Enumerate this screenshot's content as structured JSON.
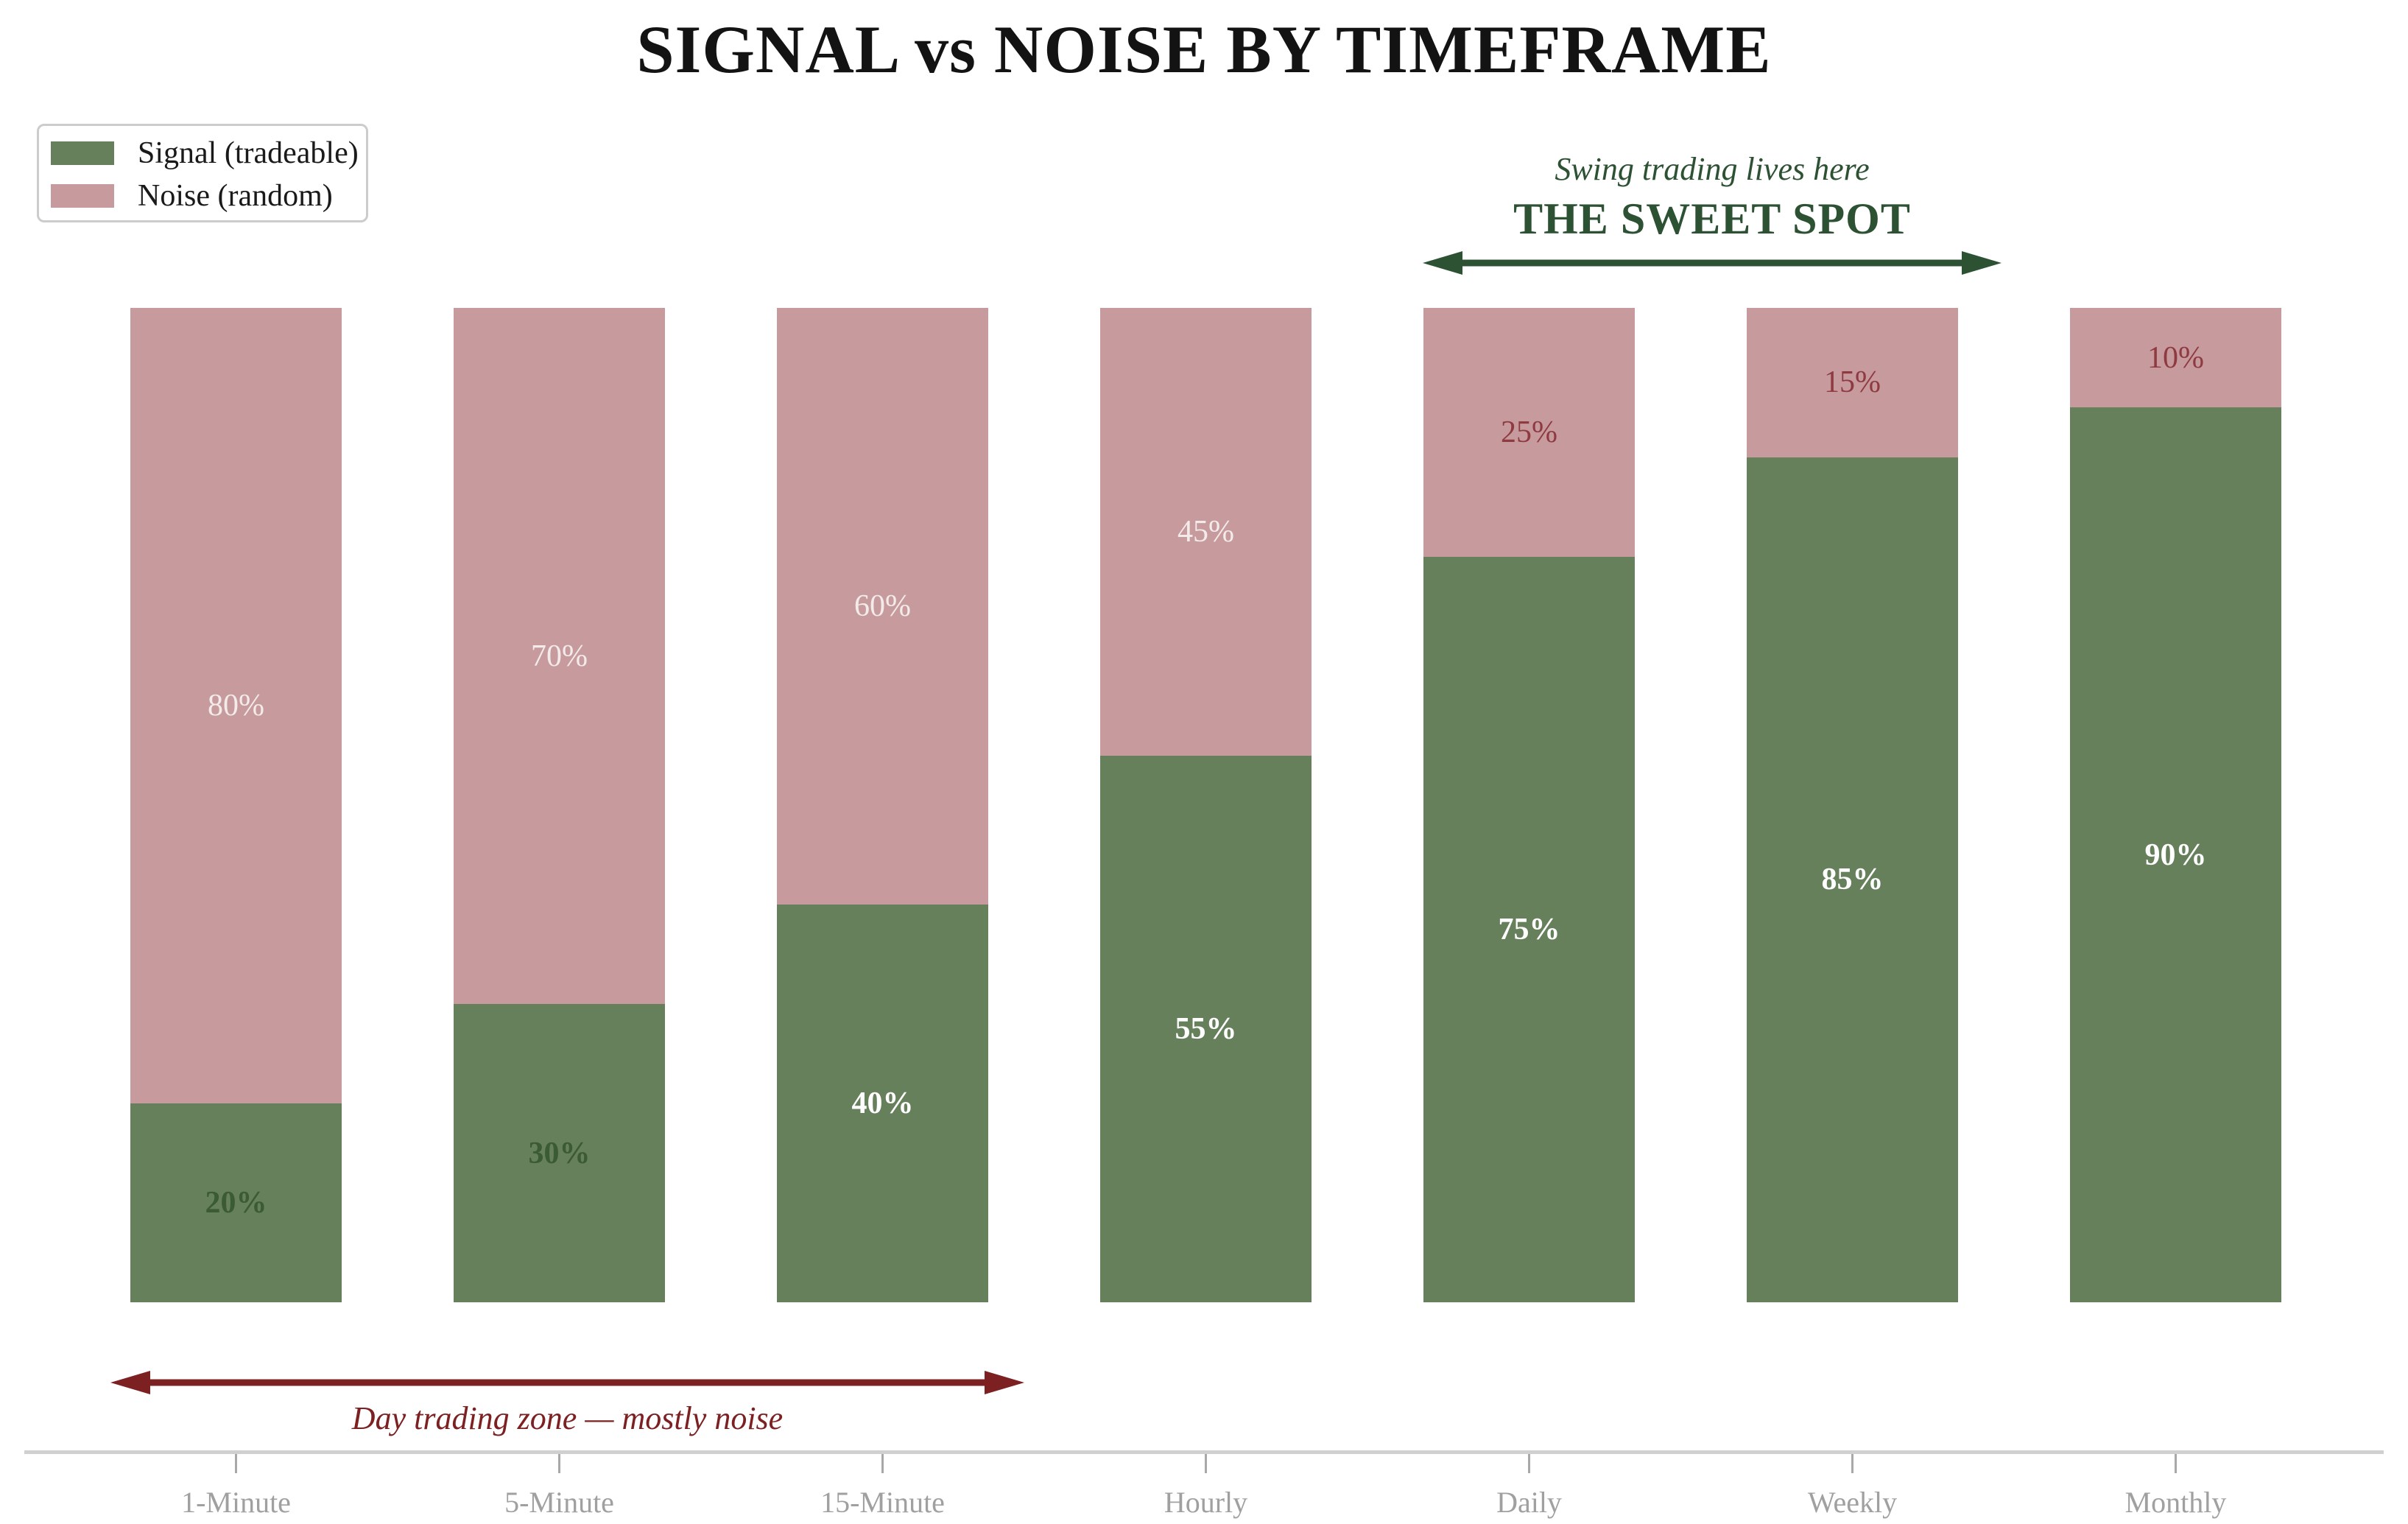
{
  "title": "SIGNAL vs NOISE BY TIMEFRAME",
  "legend": {
    "signal_label": "Signal (tradeable)",
    "noise_label": "Noise (random)"
  },
  "annotations": {
    "sweet_spot": {
      "line1": "Swing trading lives here",
      "line2": "THE SWEET SPOT",
      "color": "#2c5233",
      "spans_categories": [
        "Daily",
        "Weekly"
      ]
    },
    "day_trading": {
      "label": "Day trading zone — mostly noise",
      "color": "#7c2022",
      "spans_categories": [
        "1-Minute",
        "15-Minute"
      ]
    }
  },
  "colors": {
    "signal": "#67805c",
    "noise": "#c79b9d",
    "signal_label_dark": "#3a5b33",
    "signal_label_light": "#ffffff",
    "noise_label_light": "#f3ebea",
    "noise_label_dark": "#8e3a40",
    "axis_spine": "#d0d0d0",
    "tick_mark": "#a8a8a8",
    "tick_label": "#a0a0a0",
    "title_color": "#131313"
  },
  "chart_data": {
    "type": "bar",
    "stacked": true,
    "title": "SIGNAL vs NOISE BY TIMEFRAME",
    "xlabel": "",
    "ylabel": "",
    "ylim": [
      0,
      100
    ],
    "grid": false,
    "legend_position": "upper left",
    "categories": [
      "1-Minute",
      "5-Minute",
      "15-Minute",
      "Hourly",
      "Daily",
      "Weekly",
      "Monthly"
    ],
    "series": [
      {
        "name": "Signal (tradeable)",
        "values": [
          20,
          30,
          40,
          55,
          75,
          85,
          90
        ]
      },
      {
        "name": "Noise (random)",
        "values": [
          80,
          70,
          60,
          45,
          25,
          15,
          10
        ]
      }
    ],
    "value_label_format": "{value}%",
    "signal_label_style": [
      "dark",
      "dark",
      "light",
      "light",
      "light",
      "light",
      "light"
    ],
    "noise_label_style": [
      "light",
      "light",
      "light",
      "light",
      "dark",
      "dark",
      "dark"
    ]
  }
}
